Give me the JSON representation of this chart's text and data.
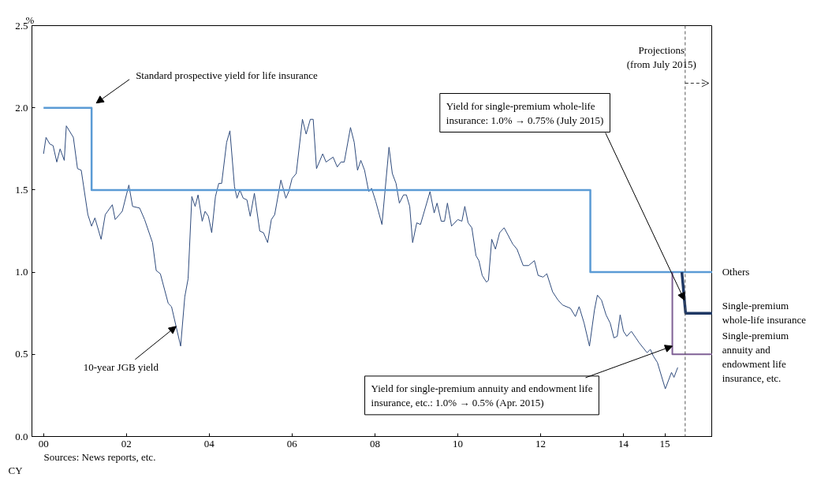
{
  "chart_data": {
    "type": "line",
    "xlabel": "CY",
    "ylabel": "%",
    "xlim": [
      1999.72,
      2016.15
    ],
    "ylim": [
      0,
      2.5
    ],
    "xticks": [
      {
        "value": 2000,
        "label": "00"
      },
      {
        "value": 2002,
        "label": "02"
      },
      {
        "value": 2004,
        "label": "04"
      },
      {
        "value": 2006,
        "label": "06"
      },
      {
        "value": 2008,
        "label": "08"
      },
      {
        "value": 2010,
        "label": "10"
      },
      {
        "value": 2012,
        "label": "12"
      },
      {
        "value": 2014,
        "label": "14"
      },
      {
        "value": 2015,
        "label": "15"
      }
    ],
    "yticks": [
      {
        "value": 0,
        "label": "0.0"
      },
      {
        "value": 0.5,
        "label": "0.5"
      },
      {
        "value": 1,
        "label": "1.0"
      },
      {
        "value": 1.5,
        "label": "1.5"
      },
      {
        "value": 2,
        "label": "2.0"
      },
      {
        "value": 2.5,
        "label": "2.5"
      }
    ],
    "grid": false,
    "legend": false,
    "series": [
      {
        "color": "#2f4b7c",
        "x": [
          2000.0,
          2000.06,
          2000.15,
          2000.23,
          2000.32,
          2000.4,
          2000.5,
          2000.55,
          2000.72,
          2000.82,
          2000.91,
          2001.07,
          2001.16,
          2001.24,
          2001.39,
          2001.49,
          2001.66,
          2001.73,
          2001.9,
          2002.06,
          2002.15,
          2002.32,
          2002.44,
          2002.63,
          2002.72,
          2002.82,
          2003.01,
          2003.09,
          2003.31,
          2003.41,
          2003.49,
          2003.58,
          2003.66,
          2003.73,
          2003.83,
          2003.9,
          2003.98,
          2004.06,
          2004.15,
          2004.23,
          2004.3,
          2004.42,
          2004.5,
          2004.61,
          2004.67,
          2004.74,
          2004.82,
          2004.91,
          2004.99,
          2005.09,
          2005.22,
          2005.31,
          2005.41,
          2005.5,
          2005.58,
          2005.73,
          2005.85,
          2005.92,
          2006.0,
          2006.1,
          2006.25,
          2006.34,
          2006.44,
          2006.51,
          2006.59,
          2006.74,
          2006.82,
          2006.99,
          2007.09,
          2007.18,
          2007.26,
          2007.41,
          2007.5,
          2007.58,
          2007.66,
          2007.75,
          2007.85,
          2007.92,
          2008.02,
          2008.17,
          2008.34,
          2008.42,
          2008.51,
          2008.59,
          2008.69,
          2008.76,
          2008.84,
          2008.91,
          2009.01,
          2009.1,
          2009.33,
          2009.43,
          2009.5,
          2009.6,
          2009.68,
          2009.75,
          2009.85,
          2010.0,
          2010.1,
          2010.17,
          2010.25,
          2010.34,
          2010.44,
          2010.51,
          2010.59,
          2010.69,
          2010.74,
          2010.82,
          2010.91,
          2011.01,
          2011.12,
          2011.33,
          2011.43,
          2011.58,
          2011.71,
          2011.85,
          2011.94,
          2012.06,
          2012.15,
          2012.29,
          2012.42,
          2012.53,
          2012.72,
          2012.84,
          2012.93,
          2013.05,
          2013.18,
          2013.3,
          2013.37,
          2013.47,
          2013.58,
          2013.68,
          2013.77,
          2013.85,
          2013.92,
          2014.0,
          2014.08,
          2014.19,
          2014.3,
          2014.38,
          2014.57,
          2014.65,
          2014.72,
          2014.82,
          2015.01,
          2015.16,
          2015.22,
          2015.31
        ],
        "values": [
          1.72,
          1.82,
          1.78,
          1.77,
          1.67,
          1.75,
          1.68,
          1.89,
          1.82,
          1.63,
          1.62,
          1.35,
          1.28,
          1.33,
          1.2,
          1.35,
          1.41,
          1.32,
          1.37,
          1.53,
          1.4,
          1.39,
          1.32,
          1.18,
          1.01,
          0.99,
          0.81,
          0.79,
          0.55,
          0.85,
          0.96,
          1.46,
          1.4,
          1.47,
          1.31,
          1.37,
          1.34,
          1.24,
          1.46,
          1.54,
          1.54,
          1.79,
          1.86,
          1.52,
          1.45,
          1.5,
          1.45,
          1.44,
          1.34,
          1.48,
          1.25,
          1.24,
          1.18,
          1.32,
          1.35,
          1.56,
          1.45,
          1.49,
          1.57,
          1.6,
          1.93,
          1.84,
          1.93,
          1.93,
          1.63,
          1.72,
          1.67,
          1.7,
          1.64,
          1.67,
          1.67,
          1.88,
          1.79,
          1.62,
          1.68,
          1.62,
          1.49,
          1.51,
          1.43,
          1.29,
          1.76,
          1.6,
          1.54,
          1.42,
          1.47,
          1.47,
          1.4,
          1.18,
          1.3,
          1.29,
          1.49,
          1.36,
          1.42,
          1.31,
          1.31,
          1.42,
          1.28,
          1.32,
          1.31,
          1.4,
          1.3,
          1.27,
          1.1,
          1.07,
          0.98,
          0.94,
          0.95,
          1.2,
          1.14,
          1.24,
          1.27,
          1.17,
          1.14,
          1.04,
          1.04,
          1.07,
          0.98,
          0.97,
          0.99,
          0.88,
          0.83,
          0.8,
          0.78,
          0.73,
          0.79,
          0.69,
          0.55,
          0.77,
          0.86,
          0.83,
          0.74,
          0.69,
          0.6,
          0.61,
          0.74,
          0.64,
          0.61,
          0.64,
          0.6,
          0.57,
          0.51,
          0.53,
          0.49,
          0.45,
          0.29,
          0.39,
          0.36,
          0.42
        ]
      },
      {
        "name": "Others",
        "color": "#5b9bd5",
        "x": [
          2000,
          2001.16,
          2001.16,
          2013.2,
          2013.2,
          2016.15
        ],
        "values": [
          2.0,
          2.0,
          1.5,
          1.5,
          1.0,
          1.0
        ]
      },
      {
        "name": "Single-premium whole-life insurance",
        "color": "#1f3864",
        "x": [
          2015.41,
          2015.5,
          2016.15
        ],
        "values": [
          1.0,
          0.75,
          0.75
        ]
      },
      {
        "name": "Single-premium annuity and endowment life insurance, etc.",
        "color": "#7f6095",
        "x": [
          2015.18,
          2015.18,
          2016.15
        ],
        "values": [
          1.0,
          0.5,
          0.5
        ]
      }
    ],
    "ref_lines": [
      {
        "axis": "x",
        "value": 2015.49,
        "label": "Projections (from July 2015)",
        "line_style": "dashed",
        "color": "#555555"
      }
    ],
    "annotations": [
      {
        "text": "Standard prospective yield for life insurance",
        "x": 2001.16,
        "y": 2.0
      },
      {
        "text": "10-year JGB yield",
        "x": 2003.2,
        "y": 0.67
      },
      {
        "text": "Yield for single-premium whole-life insurance: 1.0% → 0.75% (July 2015)",
        "x": 2015.47,
        "y": 0.83
      },
      {
        "text": "Yield for single-premium annuity and endowment life insurance, etc.: 1.0% → 0.5% (Apr. 2015)",
        "x": 2015.18,
        "y": 0.55
      },
      "Sources: News reports, etc."
    ]
  }
}
